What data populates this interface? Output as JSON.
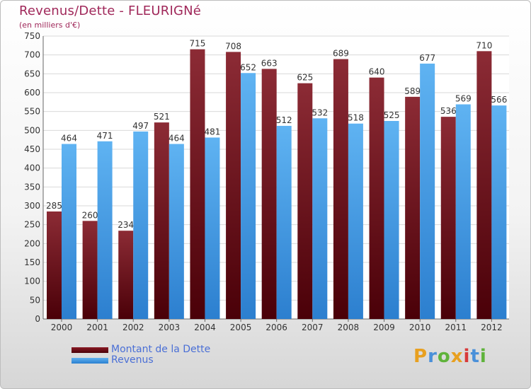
{
  "header": {
    "title": "Revenus/Dette - FLEURIGNé",
    "subtitle": "(en milliers d'€)"
  },
  "legend": {
    "items": [
      {
        "label": "Montant de la Dette",
        "color": "#7a0f1a"
      },
      {
        "label": "Revenus",
        "color": "#3d9be9"
      }
    ]
  },
  "logo": {
    "text": "Proxiti"
  },
  "chart_data": {
    "type": "bar",
    "title": "Revenus/Dette - FLEURIGNé",
    "subtitle": "(en milliers d'€)",
    "xlabel": "",
    "ylabel": "",
    "categories": [
      "2000",
      "2001",
      "2002",
      "2003",
      "2004",
      "2005",
      "2006",
      "2007",
      "2008",
      "2009",
      "2010",
      "2011",
      "2012"
    ],
    "series": [
      {
        "name": "Montant de la Dette",
        "color": "#7a0f1a",
        "values": [
          285,
          260,
          234,
          521,
          715,
          708,
          663,
          625,
          689,
          640,
          589,
          536,
          710
        ]
      },
      {
        "name": "Revenus",
        "color": "#3d9be9",
        "values": [
          464,
          471,
          497,
          464,
          481,
          652,
          512,
          532,
          518,
          525,
          677,
          569,
          566
        ]
      }
    ],
    "ylim": [
      0,
      750
    ],
    "yticks": [
      0,
      50,
      100,
      150,
      200,
      250,
      300,
      350,
      400,
      450,
      500,
      550,
      600,
      650,
      700,
      750
    ],
    "grid": true,
    "legend_position": "bottom-left"
  }
}
